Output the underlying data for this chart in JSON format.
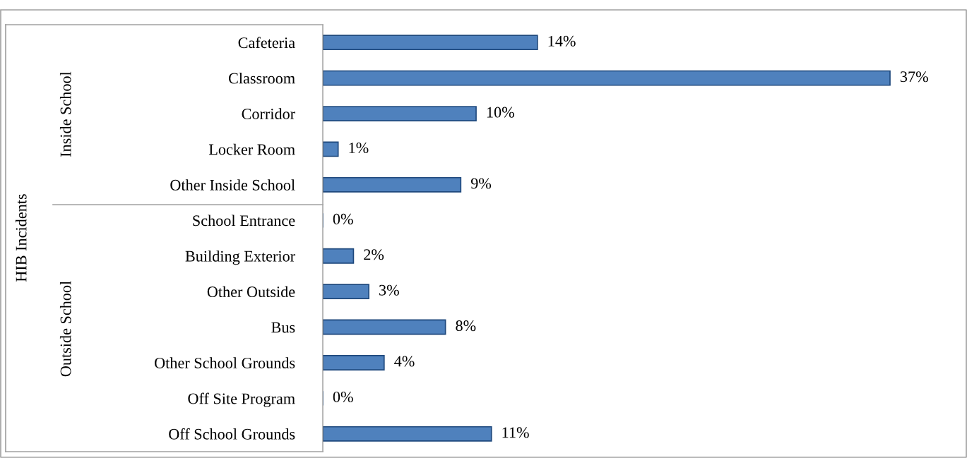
{
  "chart_data": {
    "type": "bar",
    "orientation": "horizontal",
    "categories": [
      "Cafeteria",
      "Classroom",
      "Corridor",
      "Locker Room",
      "Other Inside School",
      "School Entrance",
      "Building Exterior",
      "Other Outside",
      "Bus",
      "Other School Grounds",
      "Off Site Program",
      "Off School Grounds"
    ],
    "values": [
      14,
      37,
      10,
      1,
      9,
      0,
      2,
      3,
      8,
      4,
      0,
      11
    ],
    "value_labels": [
      "14%",
      "37%",
      "10%",
      "1%",
      "9%",
      "0%",
      "2%",
      "3%",
      "8%",
      "4%",
      "0%",
      "11%"
    ],
    "color": "#4f81bd",
    "annotations": [
      "HIB Incidents",
      "Inside School",
      "Outside School"
    ],
    "grid": false,
    "legend": false
  }
}
